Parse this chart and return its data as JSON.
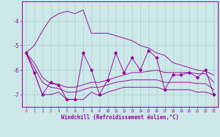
{
  "xlabel": "Windchill (Refroidissement éolien,°C)",
  "x": [
    0,
    1,
    2,
    3,
    4,
    5,
    6,
    7,
    8,
    9,
    10,
    11,
    12,
    13,
    14,
    15,
    16,
    17,
    18,
    19,
    20,
    21,
    22,
    23
  ],
  "y_main": [
    -5.3,
    -6.1,
    -7.0,
    -6.5,
    -6.6,
    -7.2,
    -7.2,
    -5.3,
    -6.0,
    -7.0,
    -6.4,
    -5.3,
    -6.1,
    -5.5,
    -6.0,
    -5.2,
    -5.5,
    -6.8,
    -6.2,
    -6.2,
    -6.1,
    -6.3,
    -6.0,
    -7.0
  ],
  "y_upper": [
    -5.3,
    -5.0,
    -4.4,
    -3.9,
    -3.7,
    -3.6,
    -3.7,
    -3.55,
    -4.5,
    -4.5,
    -4.5,
    -4.6,
    -4.7,
    -4.8,
    -5.0,
    -5.1,
    -5.3,
    -5.4,
    -5.7,
    -5.8,
    -5.9,
    -6.0,
    -6.05,
    -6.2
  ],
  "y_lower": [
    -5.3,
    -6.1,
    -7.0,
    -7.0,
    -6.9,
    -7.2,
    -7.2,
    -7.2,
    -6.9,
    -7.05,
    -6.9,
    -6.8,
    -6.7,
    -6.7,
    -6.7,
    -6.7,
    -6.7,
    -6.8,
    -6.8,
    -6.8,
    -6.8,
    -6.9,
    -6.9,
    -7.0
  ],
  "y_trend1": [
    -5.3,
    -5.7,
    -6.3,
    -6.55,
    -6.6,
    -6.7,
    -6.7,
    -6.6,
    -6.5,
    -6.5,
    -6.4,
    -6.3,
    -6.2,
    -6.1,
    -6.1,
    -6.05,
    -6.0,
    -6.1,
    -6.1,
    -6.1,
    -6.1,
    -6.15,
    -6.15,
    -6.5
  ],
  "y_trend2": [
    -5.3,
    -5.9,
    -6.5,
    -6.7,
    -6.75,
    -6.9,
    -6.9,
    -6.8,
    -6.7,
    -6.7,
    -6.6,
    -6.5,
    -6.45,
    -6.4,
    -6.4,
    -6.4,
    -6.4,
    -6.5,
    -6.5,
    -6.5,
    -6.5,
    -6.55,
    -6.55,
    -6.8
  ],
  "bg_color": "#cce8e8",
  "line_color": "#990099",
  "grid_color": "#aacccc",
  "ylim": [
    -7.5,
    -3.2
  ],
  "xlim": [
    -0.5,
    23.5
  ],
  "yticks": [
    -7,
    -6,
    -5,
    -4
  ],
  "ytick_labels": [
    "-7",
    "-6",
    "-5",
    "-4"
  ]
}
